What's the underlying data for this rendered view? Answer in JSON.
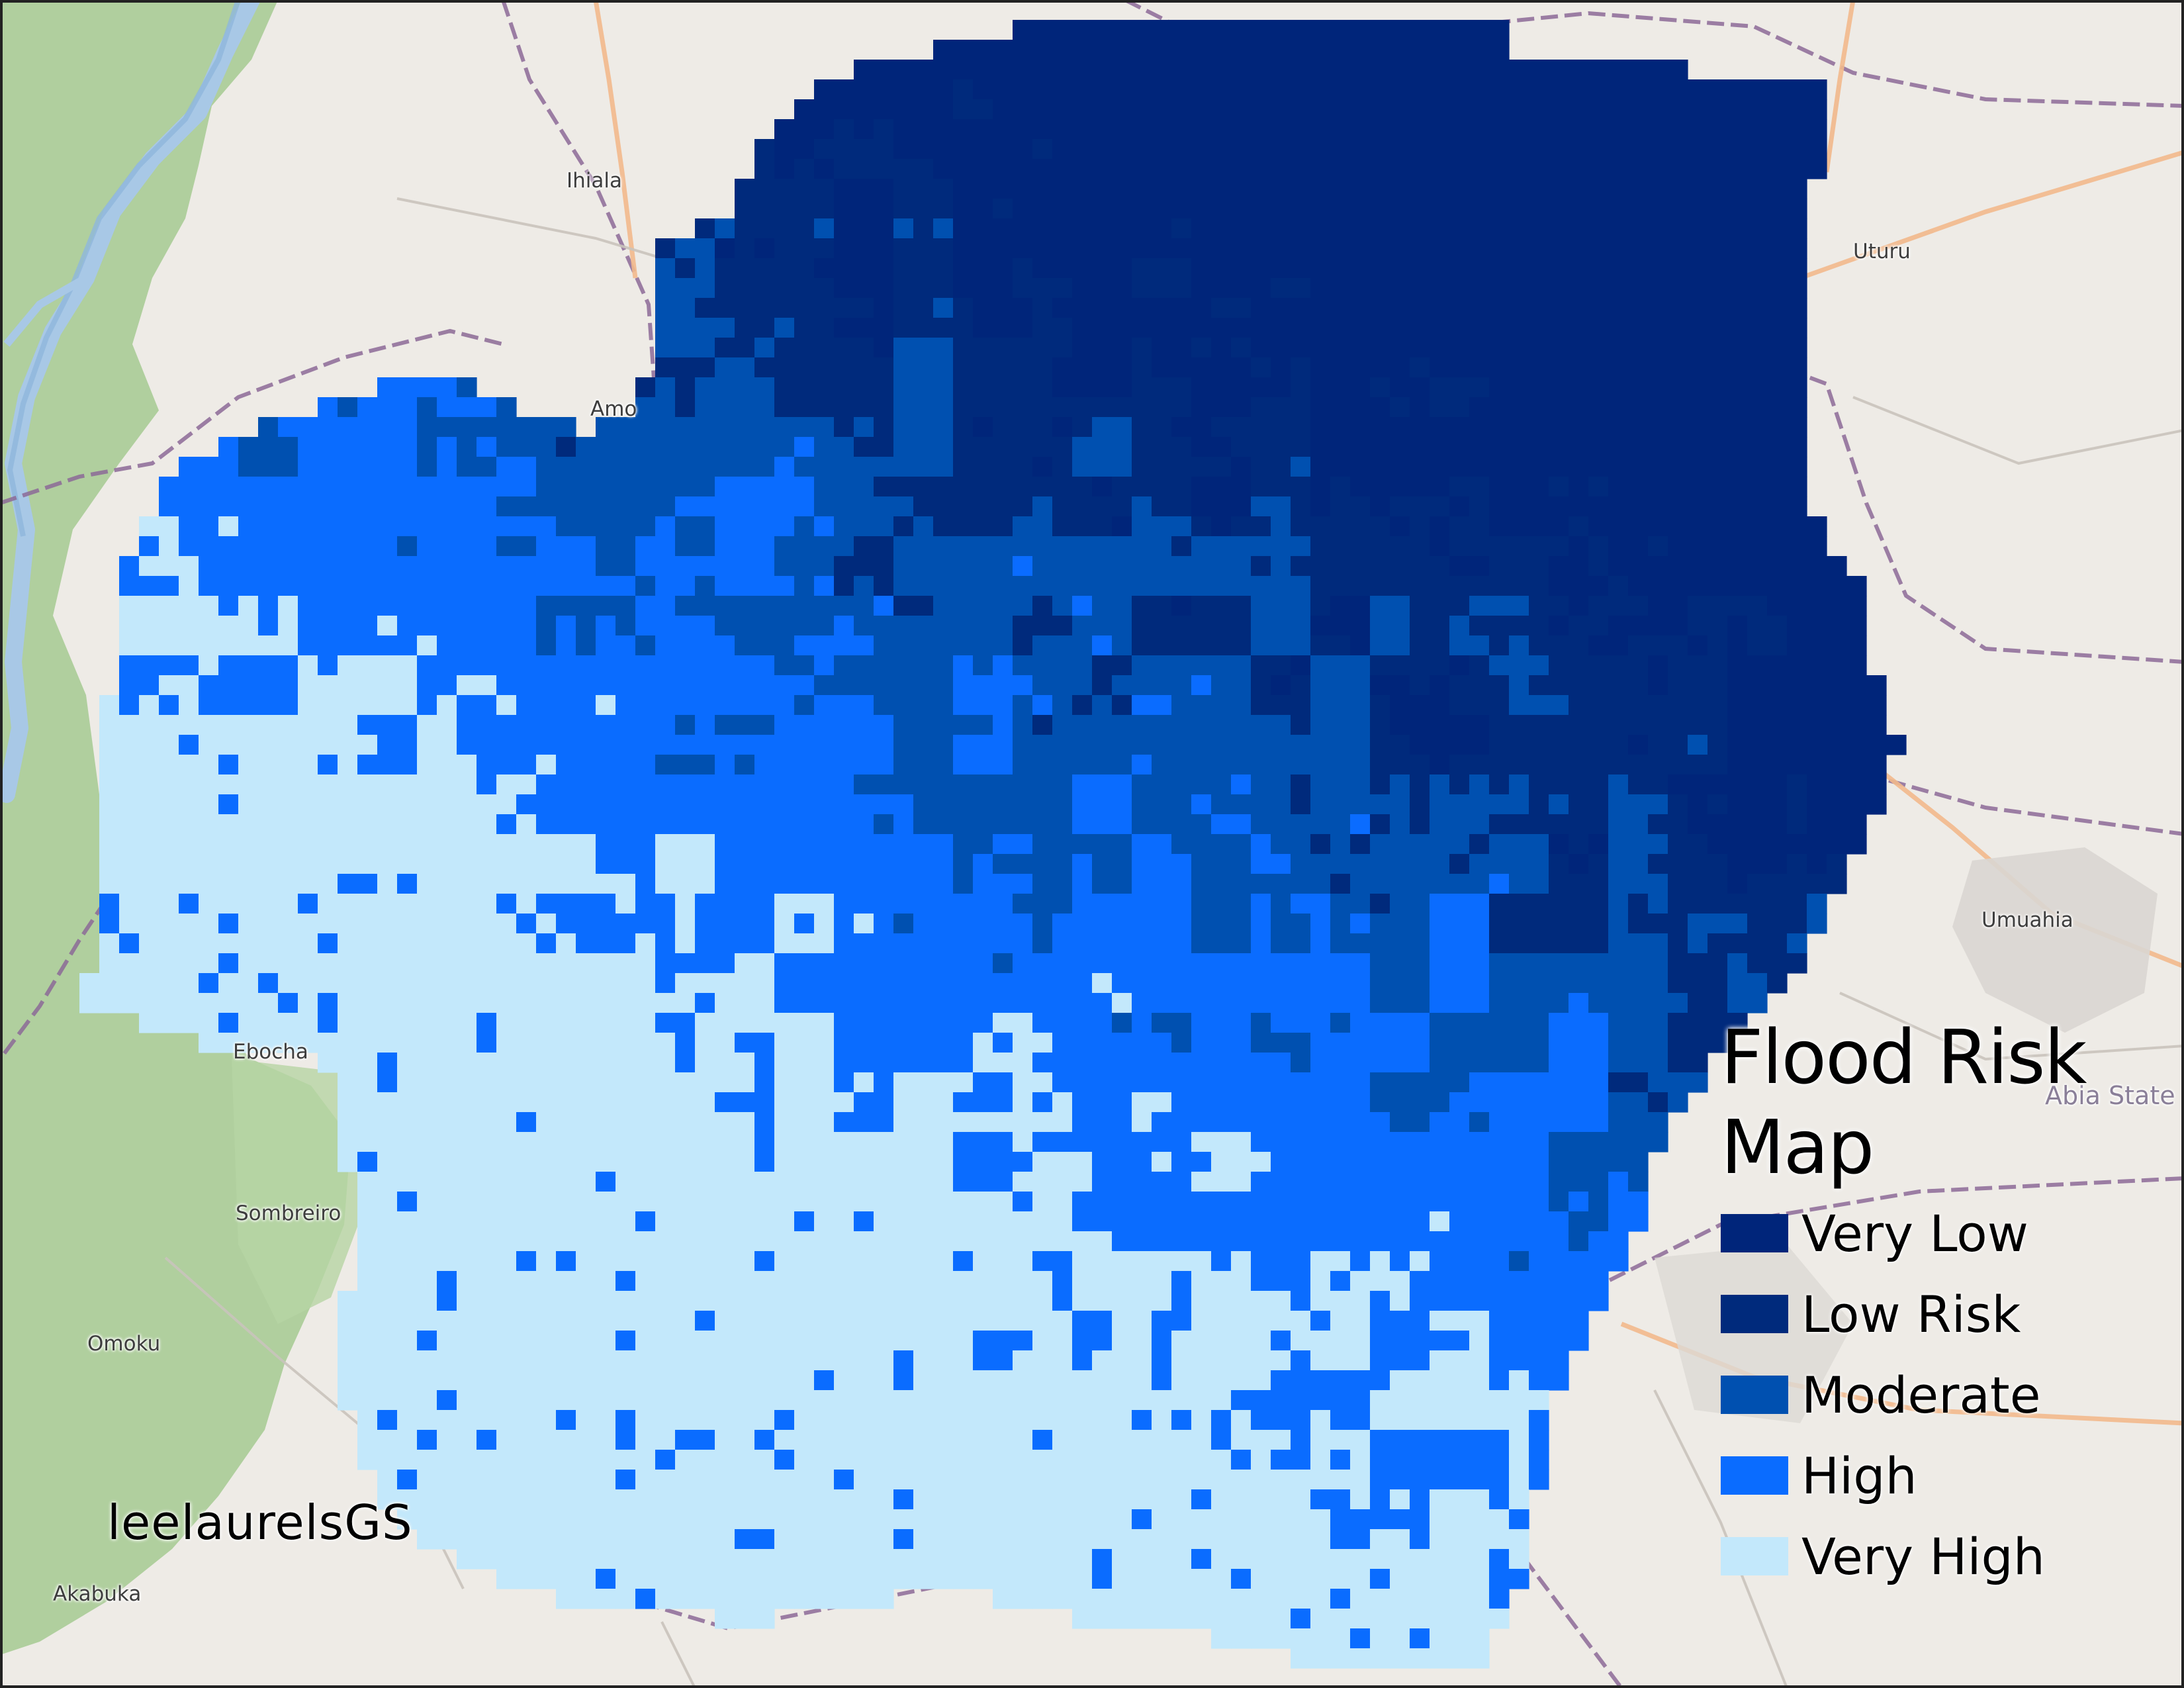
{
  "map": {
    "title": "Flood Risk Map",
    "credit": "leelaurelsGS",
    "places": [
      {
        "name": "Ihiala",
        "kind": "town"
      },
      {
        "name": "Uturu",
        "kind": "town"
      },
      {
        "name": "Amo",
        "kind": "town"
      },
      {
        "name": "Umuahia",
        "kind": "town"
      },
      {
        "name": "Abia State",
        "kind": "region"
      },
      {
        "name": "Ebocha",
        "kind": "town"
      },
      {
        "name": "Sombreiro",
        "kind": "town"
      },
      {
        "name": "Omoku",
        "kind": "town"
      },
      {
        "name": "Akabuka",
        "kind": "town"
      }
    ],
    "legend": [
      {
        "label": "Very Low",
        "color": "#00257a"
      },
      {
        "label": "Low Risk",
        "color": "#002a7c"
      },
      {
        "label": "Moderate",
        "color": "#0050b0"
      },
      {
        "label": "High",
        "color": "#0a6cff"
      },
      {
        "label": "Very High",
        "color": "#c3e8fb"
      }
    ],
    "colors": {
      "land": "#eeebe6",
      "vegetation": "#a9cc96",
      "water": "#a8c8e6",
      "boundary": "#8c6a96",
      "major_road": "#f2b98c"
    }
  }
}
